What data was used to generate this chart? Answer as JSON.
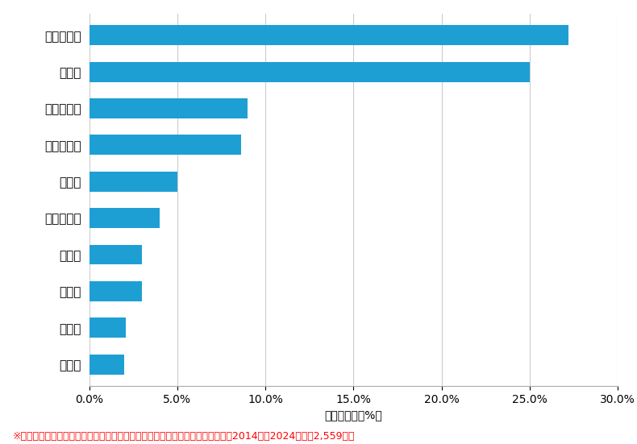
{
  "categories": [
    "笠岡市",
    "赤磐市",
    "総社市",
    "玉野市",
    "岡山市東区",
    "津山市",
    "岡山市中区",
    "岡山市南区",
    "倉敷市",
    "岡山市北区"
  ],
  "values": [
    2.0,
    2.1,
    3.0,
    3.0,
    4.0,
    5.0,
    8.6,
    9.0,
    25.0,
    27.2
  ],
  "bar_color": "#1e9fd4",
  "xlim": [
    0,
    30.0
  ],
  "xticks": [
    0,
    5.0,
    10.0,
    15.0,
    20.0,
    25.0,
    30.0
  ],
  "xlabel": "件数の割合（%）",
  "xlabel_fontsize": 10,
  "tick_fontsize": 10,
  "label_fontsize": 11,
  "footnote": "※弊社受付の案件を対象に、受付時に市区町村の回答があったものを集計（期間2014年～2024年、計2,559件）",
  "footnote_fontsize": 9,
  "footnote_color": "#ff0000",
  "background_color": "#ffffff",
  "grid_color": "#cccccc"
}
